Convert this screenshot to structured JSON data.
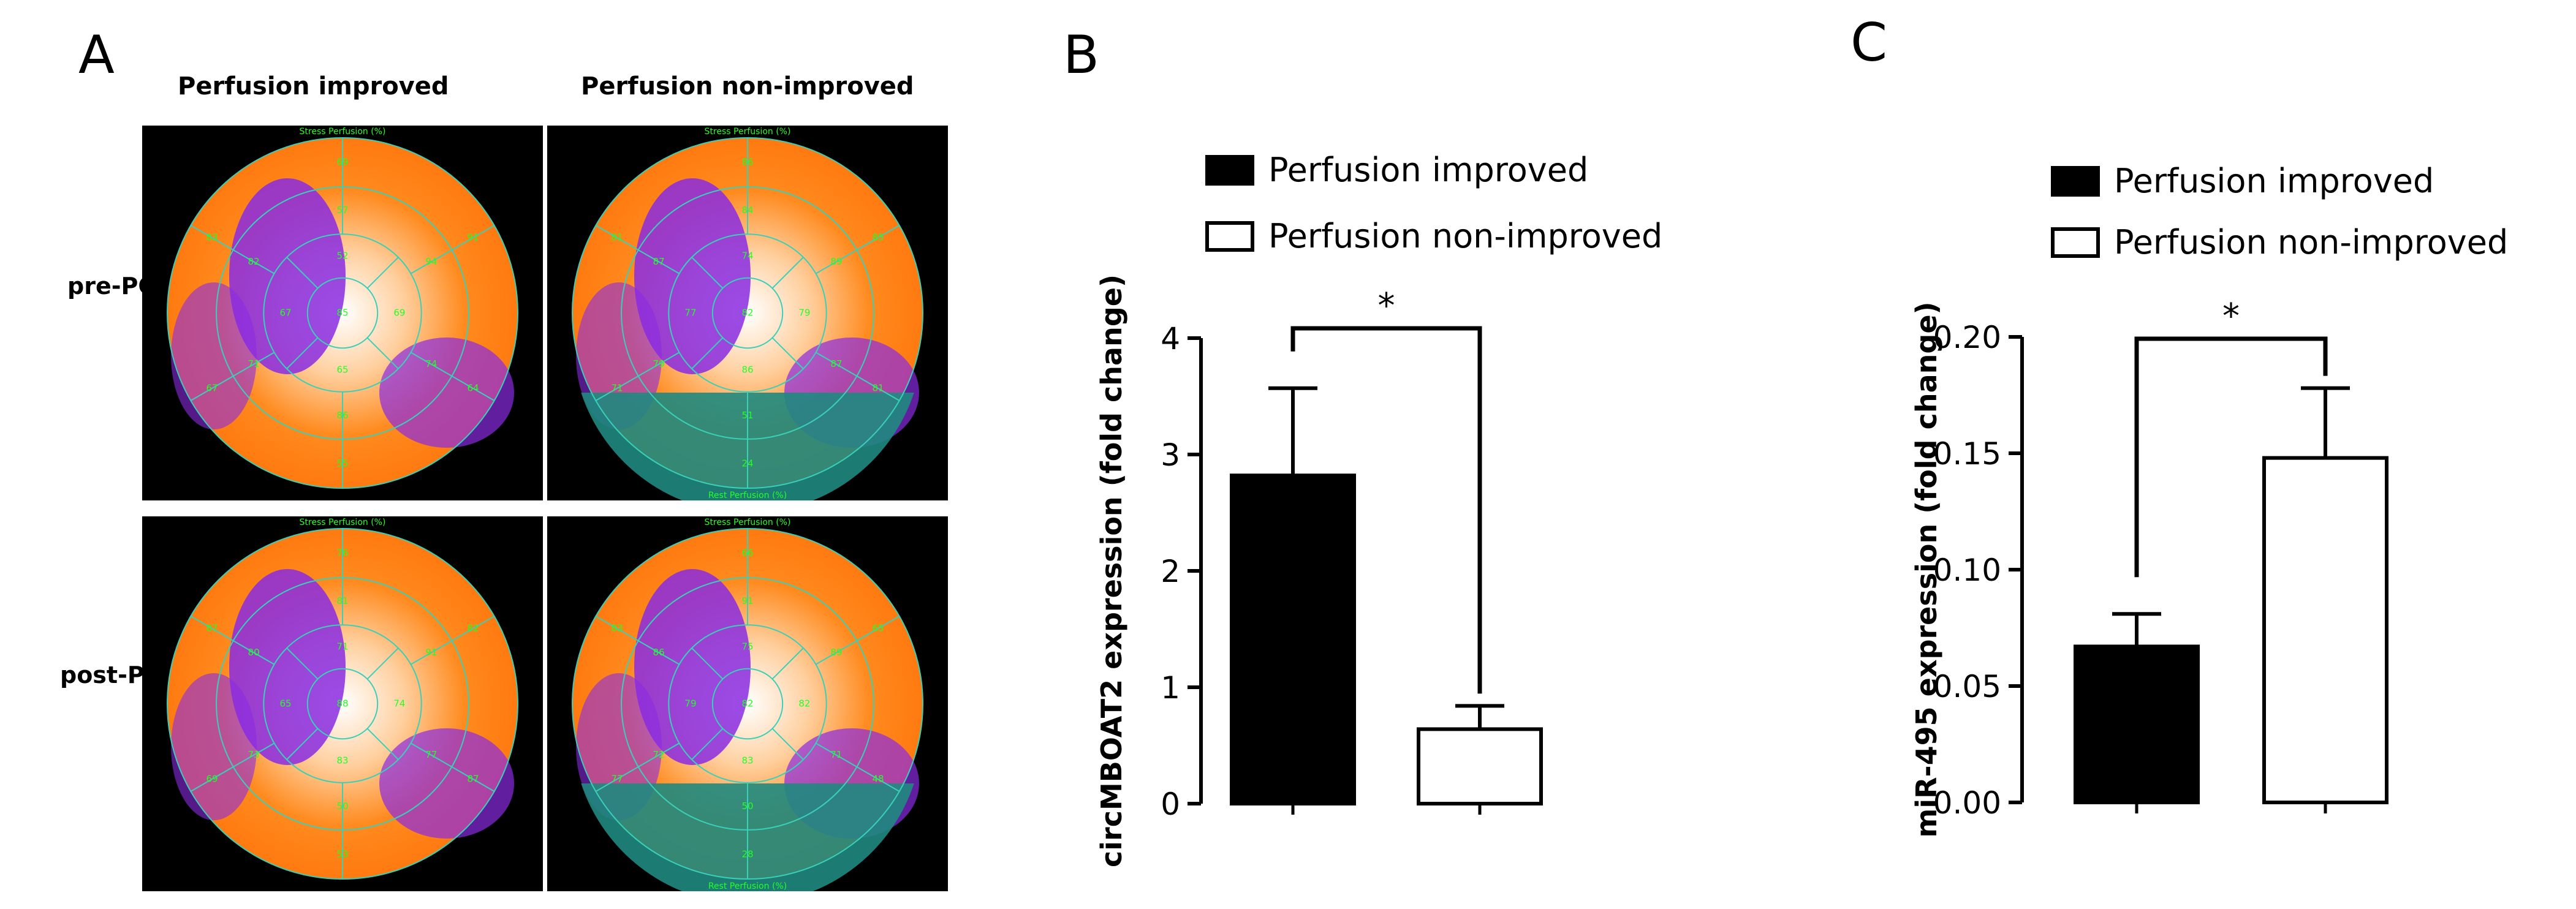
{
  "panel_a": {
    "label": "A",
    "col_titles": [
      "Perfusion improved",
      "Perfusion non-improved"
    ],
    "row_titles": [
      "pre-PCI",
      "post-PCI"
    ],
    "maps": [
      {
        "top_caption": "Stress Perfusion (%)",
        "bottom_caption": "",
        "outer": [
          "69",
          "91",
          "64",
          "55",
          "67",
          "83"
        ],
        "middle": [
          "57",
          "94",
          "74",
          "86",
          "71",
          "82"
        ],
        "inner": [
          "52",
          "69",
          "65",
          "67"
        ],
        "apex": "85"
      },
      {
        "top_caption": "Stress Perfusion (%)",
        "bottom_caption": "Rest Perfusion (%)",
        "outer": [
          "86",
          "85",
          "81",
          "24",
          "71",
          "81"
        ],
        "middle": [
          "84",
          "89",
          "87",
          "51",
          "79",
          "87"
        ],
        "inner": [
          "74",
          "79",
          "86",
          "77"
        ],
        "apex": "82"
      },
      {
        "top_caption": "Stress Perfusion (%)",
        "bottom_caption": "",
        "outer": [
          "76",
          "82",
          "87",
          "53",
          "69",
          "87"
        ],
        "middle": [
          "81",
          "91",
          "77",
          "50",
          "73",
          "80"
        ],
        "inner": [
          "71",
          "74",
          "83",
          "65"
        ],
        "apex": "88"
      },
      {
        "top_caption": "Stress Perfusion (%)",
        "bottom_caption": "Rest Perfusion (%)",
        "outer": [
          "66",
          "65",
          "48",
          "28",
          "77",
          "83"
        ],
        "middle": [
          "91",
          "89",
          "71",
          "50",
          "72",
          "86"
        ],
        "inner": [
          "75",
          "82",
          "83",
          "79"
        ],
        "apex": "82"
      }
    ]
  },
  "chart_data": [
    {
      "panel_label": "B",
      "type": "bar",
      "categories": [
        "Perfusion improved",
        "Perfusion non-improved"
      ],
      "values": [
        2.82,
        0.64
      ],
      "errors": [
        0.75,
        0.2
      ],
      "bar_fills": [
        "#000000",
        "#ffffff"
      ],
      "ylabel": "circMBOAT2 expression (fold change)",
      "ylim": [
        0,
        4
      ],
      "yticks": [
        "0",
        "1",
        "2",
        "3",
        "4"
      ],
      "significance": "*",
      "legend": [
        "Perfusion improved",
        "Perfusion non-improved"
      ]
    },
    {
      "panel_label": "C",
      "type": "bar",
      "categories": [
        "Perfusion improved",
        "Perfusion non-improved"
      ],
      "values": [
        0.067,
        0.148
      ],
      "errors": [
        0.014,
        0.03
      ],
      "bar_fills": [
        "#000000",
        "#ffffff"
      ],
      "ylabel": "miR-495 expression (fold change)",
      "ylim": [
        0,
        0.2
      ],
      "yticks": [
        "0.00",
        "0.05",
        "0.10",
        "0.15",
        "0.20"
      ],
      "significance": "*",
      "legend": [
        "Perfusion improved",
        "Perfusion non-improved"
      ]
    }
  ]
}
